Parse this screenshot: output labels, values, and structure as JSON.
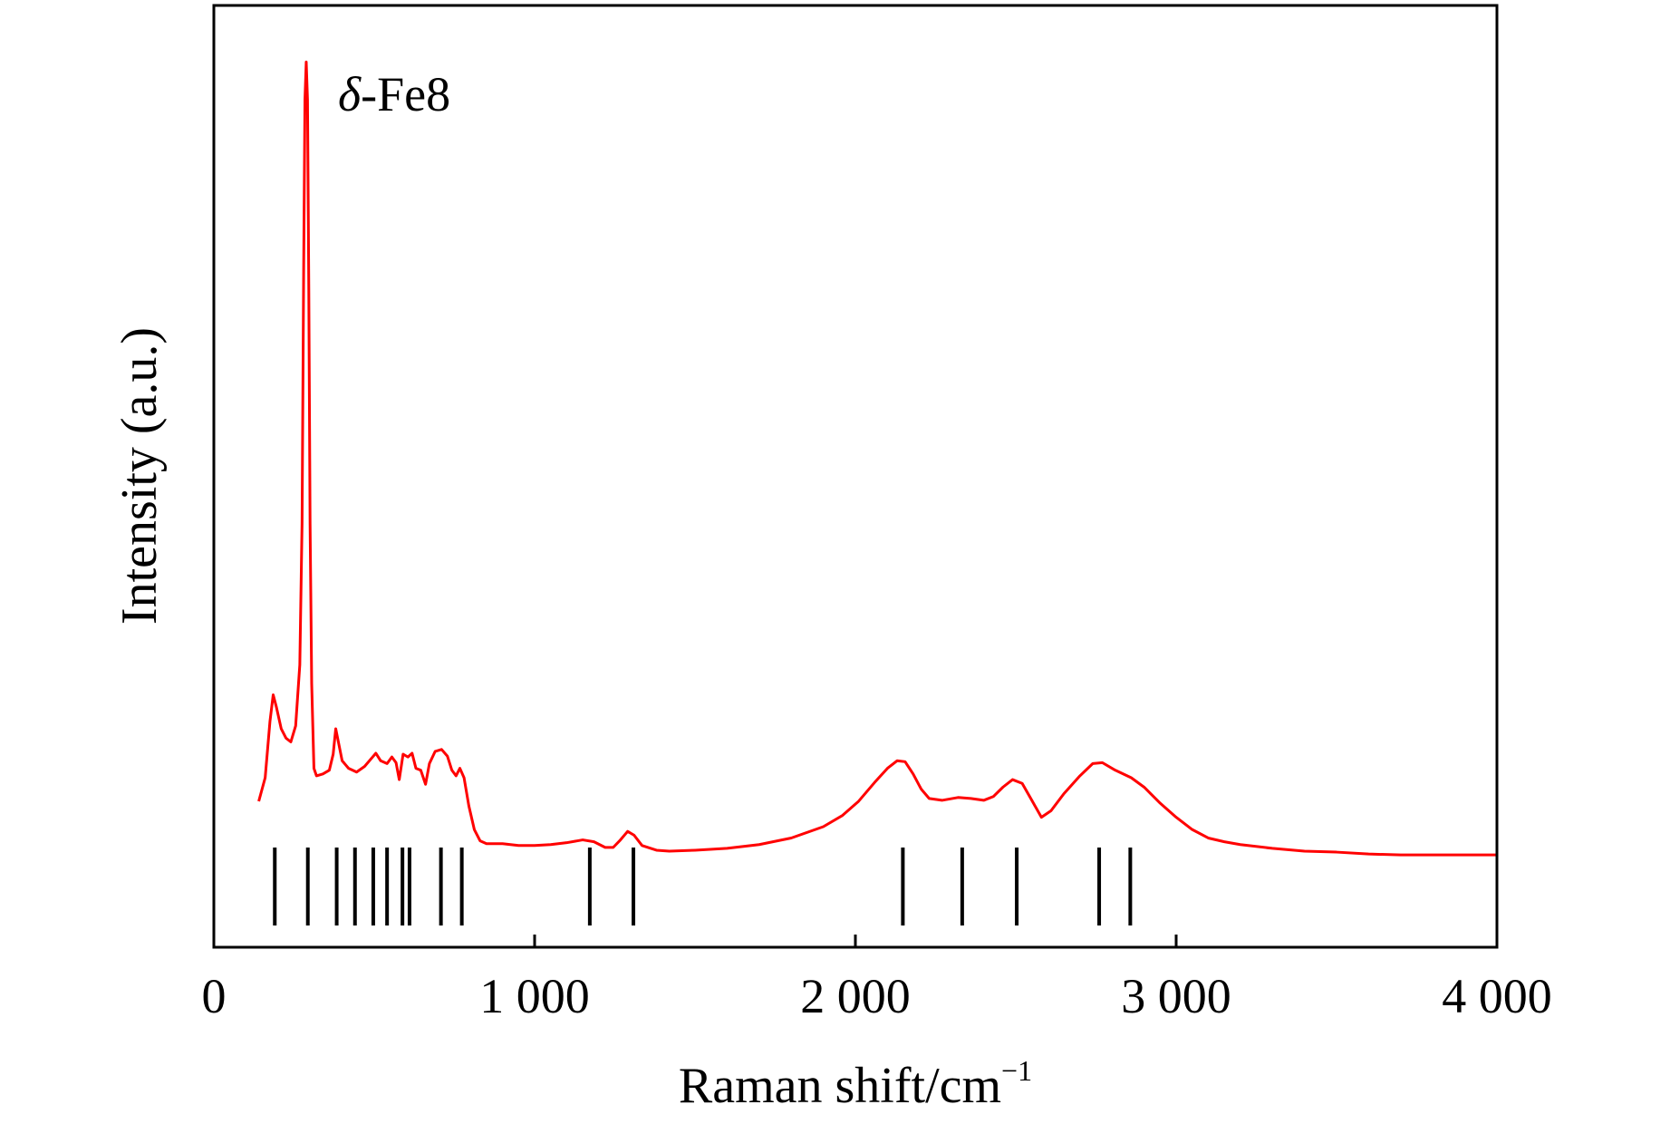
{
  "chart_data": {
    "type": "line",
    "annotation": {
      "symbol": "δ",
      "text": "-Fe8"
    },
    "xlabel": {
      "main": "Raman shift/cm",
      "superscript": "−1"
    },
    "ylabel": "Intensity (a.u.)",
    "xlim": [
      0,
      4000
    ],
    "ylim": [
      0,
      100
    ],
    "x_ticks": [
      {
        "value": 0,
        "label": "0"
      },
      {
        "value": 1000,
        "label": "1 000"
      },
      {
        "value": 2000,
        "label": "2 000"
      },
      {
        "value": 3000,
        "label": "3 000"
      },
      {
        "value": 4000,
        "label": "4 000"
      }
    ],
    "y_ticks_shown": false,
    "grid": false,
    "line_color": "#ff0000",
    "reference_color": "#000000",
    "series": [
      {
        "name": "",
        "points": [
          [
            140,
            15.5
          ],
          [
            160,
            18.0
          ],
          [
            175,
            24.0
          ],
          [
            185,
            26.8
          ],
          [
            195,
            25.5
          ],
          [
            210,
            23.2
          ],
          [
            225,
            22.2
          ],
          [
            240,
            21.8
          ],
          [
            255,
            23.5
          ],
          [
            268,
            30.0
          ],
          [
            275,
            45.0
          ],
          [
            280,
            72.0
          ],
          [
            284,
            90.0
          ],
          [
            288,
            94.0
          ],
          [
            292,
            90.0
          ],
          [
            296,
            70.0
          ],
          [
            300,
            45.0
          ],
          [
            305,
            28.0
          ],
          [
            312,
            19.0
          ],
          [
            320,
            18.2
          ],
          [
            340,
            18.4
          ],
          [
            360,
            18.8
          ],
          [
            372,
            20.5
          ],
          [
            380,
            23.2
          ],
          [
            390,
            21.5
          ],
          [
            400,
            19.8
          ],
          [
            420,
            19.0
          ],
          [
            445,
            18.6
          ],
          [
            470,
            19.2
          ],
          [
            490,
            20.0
          ],
          [
            505,
            20.6
          ],
          [
            520,
            19.8
          ],
          [
            540,
            19.5
          ],
          [
            555,
            20.2
          ],
          [
            568,
            19.6
          ],
          [
            578,
            17.8
          ],
          [
            590,
            20.5
          ],
          [
            605,
            20.2
          ],
          [
            618,
            20.6
          ],
          [
            630,
            19.0
          ],
          [
            645,
            18.8
          ],
          [
            660,
            17.3
          ],
          [
            672,
            19.5
          ],
          [
            690,
            20.8
          ],
          [
            710,
            21.0
          ],
          [
            728,
            20.3
          ],
          [
            742,
            18.8
          ],
          [
            755,
            18.2
          ],
          [
            767,
            19.0
          ],
          [
            780,
            18.0
          ],
          [
            795,
            15.0
          ],
          [
            812,
            12.5
          ],
          [
            830,
            11.3
          ],
          [
            850,
            11.0
          ],
          [
            900,
            11.0
          ],
          [
            950,
            10.8
          ],
          [
            1000,
            10.8
          ],
          [
            1050,
            10.9
          ],
          [
            1100,
            11.1
          ],
          [
            1150,
            11.4
          ],
          [
            1185,
            11.2
          ],
          [
            1220,
            10.6
          ],
          [
            1245,
            10.6
          ],
          [
            1265,
            11.3
          ],
          [
            1290,
            12.3
          ],
          [
            1310,
            11.9
          ],
          [
            1335,
            10.8
          ],
          [
            1380,
            10.3
          ],
          [
            1420,
            10.2
          ],
          [
            1500,
            10.3
          ],
          [
            1600,
            10.5
          ],
          [
            1700,
            10.9
          ],
          [
            1800,
            11.6
          ],
          [
            1900,
            12.8
          ],
          [
            1960,
            14.0
          ],
          [
            2010,
            15.5
          ],
          [
            2060,
            17.5
          ],
          [
            2100,
            19.0
          ],
          [
            2130,
            19.8
          ],
          [
            2155,
            19.7
          ],
          [
            2180,
            18.4
          ],
          [
            2205,
            16.8
          ],
          [
            2230,
            15.8
          ],
          [
            2270,
            15.6
          ],
          [
            2320,
            15.9
          ],
          [
            2360,
            15.8
          ],
          [
            2400,
            15.6
          ],
          [
            2430,
            16.0
          ],
          [
            2460,
            17.0
          ],
          [
            2490,
            17.8
          ],
          [
            2520,
            17.4
          ],
          [
            2550,
            15.6
          ],
          [
            2580,
            13.8
          ],
          [
            2610,
            14.5
          ],
          [
            2650,
            16.3
          ],
          [
            2700,
            18.2
          ],
          [
            2740,
            19.5
          ],
          [
            2770,
            19.6
          ],
          [
            2810,
            18.8
          ],
          [
            2860,
            18.0
          ],
          [
            2900,
            17.0
          ],
          [
            2950,
            15.3
          ],
          [
            3000,
            13.8
          ],
          [
            3050,
            12.5
          ],
          [
            3100,
            11.6
          ],
          [
            3150,
            11.2
          ],
          [
            3200,
            10.9
          ],
          [
            3300,
            10.5
          ],
          [
            3400,
            10.2
          ],
          [
            3500,
            10.1
          ],
          [
            3600,
            9.9
          ],
          [
            3700,
            9.8
          ],
          [
            3800,
            9.8
          ],
          [
            3900,
            9.8
          ],
          [
            4000,
            9.8
          ]
        ]
      }
    ],
    "reference_lines": [
      190,
      293,
      383,
      440,
      497,
      540,
      588,
      610,
      708,
      773,
      1172,
      1308,
      2148,
      2333,
      2503,
      2760,
      2857
    ]
  }
}
